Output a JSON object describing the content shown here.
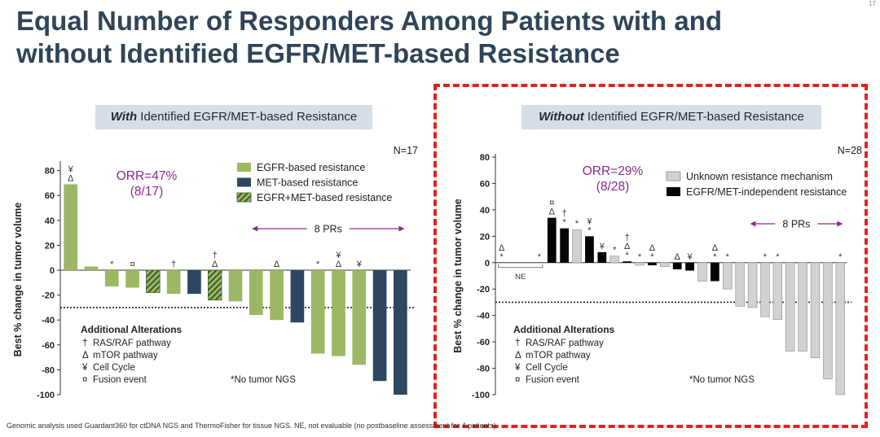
{
  "title_line1": "Equal Number of Responders Among Patients with and",
  "title_line2": "without Identified EGFR/MET-based Resistance",
  "footnote": "Genomic analysis used Guardant360 for ctDNA NGS and ThermoFisher for tissue NGS. NE, not evaluable (no postbaseline assessment for 4 patients).",
  "corner_mark": "17",
  "colors": {
    "egfr": "#9cb864",
    "met": "#2e4661",
    "combo_fill": "#9cb864",
    "combo_stripe": "#3a5a2a",
    "unknown": "#d2d2d2",
    "independent": "#050505",
    "prs_arrow": "#8b2a8b",
    "orr": "#8b2a8b",
    "red_box": "#e3221c",
    "panel_head_bg": "#d7dde6"
  },
  "chart_data": [
    {
      "type": "bar",
      "panel_title_em": "With",
      "panel_title_rest": " Identified EGFR/MET-based Resistance",
      "n_label": "N=17",
      "orr_line1": "ORR=47%",
      "orr_line2": "(8/17)",
      "ylabel": "Best % change in tumor volume",
      "ylim": [
        -100,
        85
      ],
      "yticks": [
        80,
        60,
        40,
        20,
        0,
        -20,
        -40,
        -60,
        -80,
        -100
      ],
      "threshold": -30,
      "legend": [
        {
          "label": "EGFR-based resistance",
          "key": "egfr"
        },
        {
          "label": "MET-based resistance",
          "key": "met"
        },
        {
          "label": "EGFR+MET-based resistance",
          "key": "combo"
        }
      ],
      "prs_label": "8 PRs",
      "prs_range": [
        9,
        16
      ],
      "alterations_title": "Additional Alterations",
      "alterations": [
        {
          "symbol": "†",
          "label": "RAS/RAF pathway"
        },
        {
          "symbol": "Δ",
          "label": "mTOR pathway"
        },
        {
          "symbol": "¥",
          "label": "Cell Cycle"
        },
        {
          "symbol": "¤",
          "label": "Fusion event"
        }
      ],
      "no_ngs_note": "*No tumor NGS",
      "bars": [
        {
          "value": 69,
          "group": "egfr",
          "marks": [
            "¥",
            "Δ"
          ]
        },
        {
          "value": 3,
          "group": "egfr",
          "marks": []
        },
        {
          "value": -13,
          "group": "egfr",
          "marks": [
            "*"
          ]
        },
        {
          "value": -14,
          "group": "egfr",
          "marks": [
            "¤"
          ]
        },
        {
          "value": -18,
          "group": "combo",
          "marks": []
        },
        {
          "value": -19,
          "group": "egfr",
          "marks": [
            "†"
          ]
        },
        {
          "value": -19,
          "group": "met",
          "marks": []
        },
        {
          "value": -24,
          "group": "combo",
          "marks": [
            "†",
            "Δ"
          ]
        },
        {
          "value": -25,
          "group": "egfr",
          "marks": []
        },
        {
          "value": -36,
          "group": "egfr",
          "marks": []
        },
        {
          "value": -40,
          "group": "egfr",
          "marks": [
            "Δ"
          ]
        },
        {
          "value": -42,
          "group": "met",
          "marks": []
        },
        {
          "value": -67,
          "group": "egfr",
          "marks": [
            "*"
          ]
        },
        {
          "value": -69,
          "group": "egfr",
          "marks": [
            "¥",
            "Δ"
          ]
        },
        {
          "value": -76,
          "group": "egfr",
          "marks": [
            "¥"
          ]
        },
        {
          "value": -89,
          "group": "met",
          "marks": []
        },
        {
          "value": -100,
          "group": "met",
          "marks": []
        }
      ]
    },
    {
      "type": "bar",
      "panel_title_em": "Without",
      "panel_title_rest": " Identified EGFR/MET-based Resistance",
      "n_label": "N=28",
      "orr_line1": "ORR=29%",
      "orr_line2": "(8/28)",
      "ylabel": "Best % change in tumor volume",
      "ylim": [
        -100,
        80
      ],
      "yticks": [
        80,
        60,
        40,
        20,
        0,
        -20,
        -40,
        -60,
        -80,
        -100
      ],
      "threshold": -30,
      "legend": [
        {
          "label": "Unknown resistance mechanism",
          "key": "unknown"
        },
        {
          "label": "EGFR/MET-independent resistance",
          "key": "independent"
        }
      ],
      "prs_label": "8 PRs",
      "prs_range": [
        20,
        27
      ],
      "ne_label": "NE",
      "ne_range": [
        0,
        3
      ],
      "alterations_title": "Additional Alterations",
      "alterations": [
        {
          "symbol": "†",
          "label": "RAS/RAF pathway"
        },
        {
          "symbol": "Δ",
          "label": "mTOR pathway"
        },
        {
          "symbol": "¥",
          "label": "Cell Cycle"
        },
        {
          "symbol": "¤",
          "label": "Fusion event"
        }
      ],
      "no_ngs_note": "*No tumor NGS",
      "bars": [
        {
          "value": 0,
          "group": "ne",
          "marks": [
            "Δ",
            "*"
          ]
        },
        {
          "value": 0,
          "group": "ne",
          "marks": []
        },
        {
          "value": 0,
          "group": "ne",
          "marks": []
        },
        {
          "value": 0,
          "group": "ne",
          "marks": [
            "*"
          ]
        },
        {
          "value": 34,
          "group": "independent",
          "marks": [
            "¤",
            "Δ"
          ]
        },
        {
          "value": 26,
          "group": "independent",
          "marks": [
            "†",
            "*"
          ]
        },
        {
          "value": 25,
          "group": "unknown",
          "marks": [
            "*"
          ]
        },
        {
          "value": 20,
          "group": "independent",
          "marks": [
            "¥",
            "*"
          ]
        },
        {
          "value": 8,
          "group": "independent",
          "marks": [
            "¥"
          ]
        },
        {
          "value": 5,
          "group": "unknown",
          "marks": [
            "*"
          ]
        },
        {
          "value": 1,
          "group": "independent",
          "marks": [
            "†",
            "Δ",
            "*"
          ]
        },
        {
          "value": -2,
          "group": "unknown",
          "marks": [
            "*"
          ]
        },
        {
          "value": -2,
          "group": "independent",
          "marks": [
            "Δ",
            "*"
          ]
        },
        {
          "value": -3,
          "group": "unknown",
          "marks": []
        },
        {
          "value": -5,
          "group": "independent",
          "marks": [
            "Δ"
          ]
        },
        {
          "value": -6,
          "group": "independent",
          "marks": [
            "¥"
          ]
        },
        {
          "value": -14,
          "group": "unknown",
          "marks": []
        },
        {
          "value": -14,
          "group": "independent",
          "marks": [
            "Δ",
            "*"
          ]
        },
        {
          "value": -20,
          "group": "unknown",
          "marks": [
            "*"
          ]
        },
        {
          "value": -33,
          "group": "unknown",
          "marks": []
        },
        {
          "value": -34,
          "group": "unknown",
          "marks": []
        },
        {
          "value": -41,
          "group": "unknown",
          "marks": [
            "*"
          ]
        },
        {
          "value": -43,
          "group": "unknown",
          "marks": [
            "*"
          ]
        },
        {
          "value": -67,
          "group": "unknown",
          "marks": []
        },
        {
          "value": -67,
          "group": "unknown",
          "marks": []
        },
        {
          "value": -72,
          "group": "unknown",
          "marks": []
        },
        {
          "value": -88,
          "group": "unknown",
          "marks": []
        },
        {
          "value": -100,
          "group": "unknown",
          "marks": [
            "*"
          ]
        }
      ]
    }
  ]
}
